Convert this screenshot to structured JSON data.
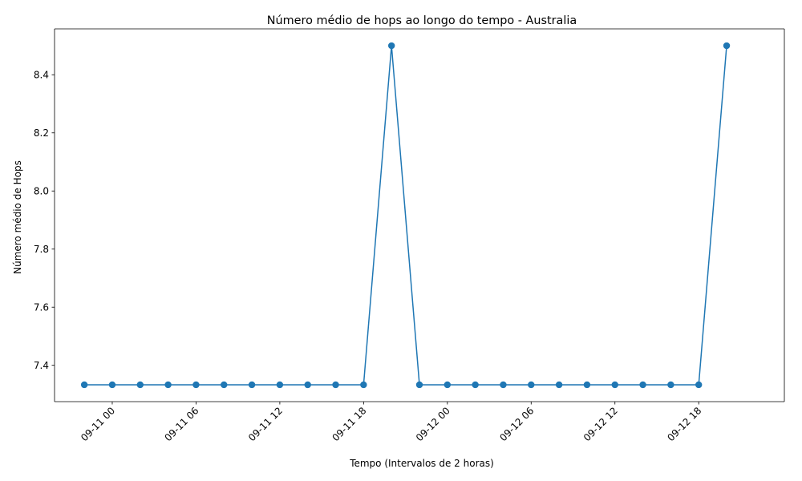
{
  "chart_data": {
    "type": "line",
    "title": "Número médio de hops ao longo do tempo - Australia",
    "xlabel": "Tempo (Intervalos de 2 horas)",
    "ylabel": "Número médio de Hops",
    "x_tick_labels": [
      "09-11 00",
      "09-11 06",
      "09-11 12",
      "09-11 18",
      "09-12 00",
      "09-12 06",
      "09-12 12",
      "09-12 18"
    ],
    "y_tick_labels": [
      "7.4",
      "7.6",
      "7.8",
      "8.0",
      "8.2",
      "8.4"
    ],
    "y_ticks": [
      7.4,
      7.6,
      7.8,
      8.0,
      8.2,
      8.4
    ],
    "xlim": [
      "2023-09-10 19:52",
      "2023-09-13 00:08"
    ],
    "ylim": [
      7.275,
      8.558
    ],
    "grid": false,
    "color": "#1f77b4",
    "series": [
      {
        "x": [
          "2023-09-10 22:00",
          "2023-09-11 00:00",
          "2023-09-11 02:00",
          "2023-09-11 04:00",
          "2023-09-11 06:00",
          "2023-09-11 08:00",
          "2023-09-11 10:00",
          "2023-09-11 12:00",
          "2023-09-11 14:00",
          "2023-09-11 16:00",
          "2023-09-11 18:00",
          "2023-09-11 20:00",
          "2023-09-11 22:00",
          "2023-09-12 00:00",
          "2023-09-12 02:00",
          "2023-09-12 04:00",
          "2023-09-12 06:00",
          "2023-09-12 08:00",
          "2023-09-12 10:00",
          "2023-09-12 12:00",
          "2023-09-12 14:00",
          "2023-09-12 16:00",
          "2023-09-12 18:00",
          "2023-09-12 20:00"
        ],
        "values": [
          7.333,
          7.333,
          7.333,
          7.333,
          7.333,
          7.333,
          7.333,
          7.333,
          7.333,
          7.333,
          7.333,
          8.5,
          7.333,
          7.333,
          7.333,
          7.333,
          7.333,
          7.333,
          7.333,
          7.333,
          7.333,
          7.333,
          7.333,
          8.5
        ]
      }
    ]
  }
}
